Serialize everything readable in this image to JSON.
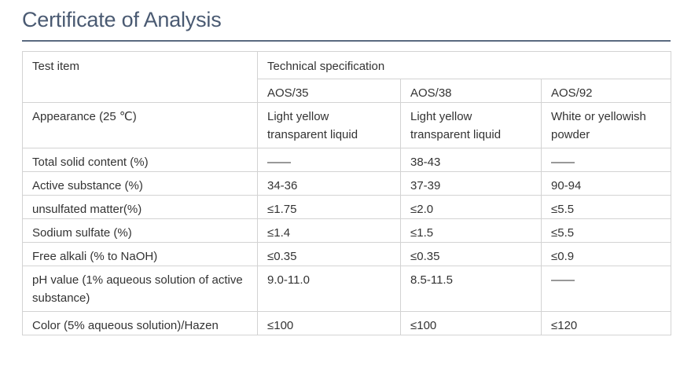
{
  "page": {
    "title": "Certificate of Analysis"
  },
  "table": {
    "header": {
      "test_item": "Test item",
      "technical_specification": "Technical specification",
      "grades": [
        "AOS/35",
        "AOS/38",
        "AOS/92"
      ]
    },
    "rows": [
      {
        "item": "Appearance (25 ℃)",
        "values": [
          "Light yellow transparent liquid",
          "Light yellow transparent liquid",
          "White or yellowish powder"
        ]
      },
      {
        "item": "Total solid content (%)",
        "values": [
          "——",
          "38-43",
          "——"
        ]
      },
      {
        "item": "Active substance (%)",
        "values": [
          "34-36",
          "37-39",
          "90-94"
        ]
      },
      {
        "item": "unsulfated matter(%)",
        "values": [
          "≤1.75",
          "≤2.0",
          "≤5.5"
        ]
      },
      {
        "item": "Sodium sulfate (%)",
        "values": [
          "≤1.4",
          "≤1.5",
          "≤5.5"
        ]
      },
      {
        "item": "Free alkali (% to NaOH)",
        "values": [
          "≤0.35",
          "≤0.35",
          "≤0.9"
        ]
      },
      {
        "item": "pH value (1% aqueous solution of active substance)",
        "values": [
          "9.0-11.0",
          "8.5-11.5",
          "——"
        ]
      },
      {
        "item": "Color (5% aqueous solution)/Hazen",
        "values": [
          "≤100",
          "≤100",
          "≤120"
        ]
      }
    ]
  }
}
